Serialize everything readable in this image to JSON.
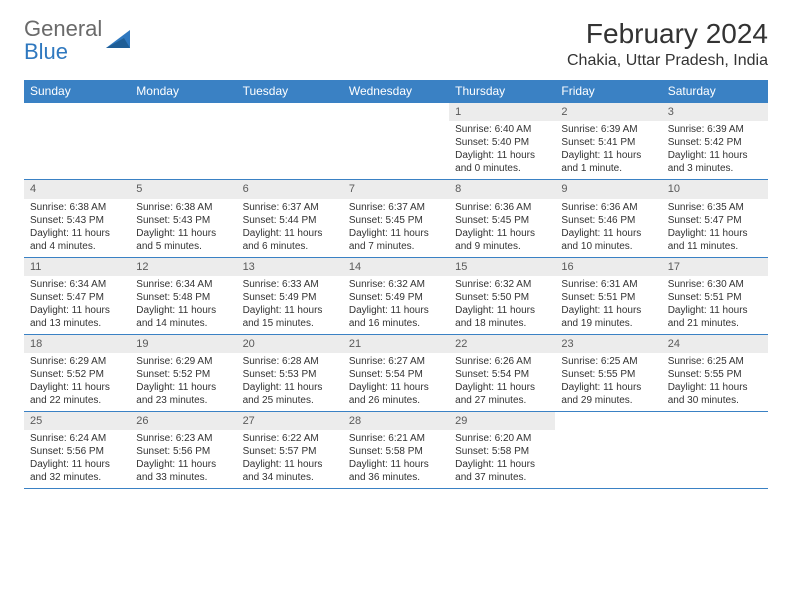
{
  "logo": {
    "general": "General",
    "blue": "Blue"
  },
  "title": "February 2024",
  "location": "Chakia, Uttar Pradesh, India",
  "colors": {
    "header_bg": "#3a81c4",
    "header_text": "#ffffff",
    "daynum_bg": "#ececec",
    "daynum_text": "#5a5a5a",
    "body_text": "#333333",
    "rule": "#3a81c4",
    "logo_gray": "#6a6a6a",
    "logo_blue": "#2f78bf"
  },
  "day_names": [
    "Sunday",
    "Monday",
    "Tuesday",
    "Wednesday",
    "Thursday",
    "Friday",
    "Saturday"
  ],
  "weeks": [
    [
      null,
      null,
      null,
      null,
      {
        "n": "1",
        "sr": "Sunrise: 6:40 AM",
        "ss": "Sunset: 5:40 PM",
        "d1": "Daylight: 11 hours",
        "d2": "and 0 minutes."
      },
      {
        "n": "2",
        "sr": "Sunrise: 6:39 AM",
        "ss": "Sunset: 5:41 PM",
        "d1": "Daylight: 11 hours",
        "d2": "and 1 minute."
      },
      {
        "n": "3",
        "sr": "Sunrise: 6:39 AM",
        "ss": "Sunset: 5:42 PM",
        "d1": "Daylight: 11 hours",
        "d2": "and 3 minutes."
      }
    ],
    [
      {
        "n": "4",
        "sr": "Sunrise: 6:38 AM",
        "ss": "Sunset: 5:43 PM",
        "d1": "Daylight: 11 hours",
        "d2": "and 4 minutes."
      },
      {
        "n": "5",
        "sr": "Sunrise: 6:38 AM",
        "ss": "Sunset: 5:43 PM",
        "d1": "Daylight: 11 hours",
        "d2": "and 5 minutes."
      },
      {
        "n": "6",
        "sr": "Sunrise: 6:37 AM",
        "ss": "Sunset: 5:44 PM",
        "d1": "Daylight: 11 hours",
        "d2": "and 6 minutes."
      },
      {
        "n": "7",
        "sr": "Sunrise: 6:37 AM",
        "ss": "Sunset: 5:45 PM",
        "d1": "Daylight: 11 hours",
        "d2": "and 7 minutes."
      },
      {
        "n": "8",
        "sr": "Sunrise: 6:36 AM",
        "ss": "Sunset: 5:45 PM",
        "d1": "Daylight: 11 hours",
        "d2": "and 9 minutes."
      },
      {
        "n": "9",
        "sr": "Sunrise: 6:36 AM",
        "ss": "Sunset: 5:46 PM",
        "d1": "Daylight: 11 hours",
        "d2": "and 10 minutes."
      },
      {
        "n": "10",
        "sr": "Sunrise: 6:35 AM",
        "ss": "Sunset: 5:47 PM",
        "d1": "Daylight: 11 hours",
        "d2": "and 11 minutes."
      }
    ],
    [
      {
        "n": "11",
        "sr": "Sunrise: 6:34 AM",
        "ss": "Sunset: 5:47 PM",
        "d1": "Daylight: 11 hours",
        "d2": "and 13 minutes."
      },
      {
        "n": "12",
        "sr": "Sunrise: 6:34 AM",
        "ss": "Sunset: 5:48 PM",
        "d1": "Daylight: 11 hours",
        "d2": "and 14 minutes."
      },
      {
        "n": "13",
        "sr": "Sunrise: 6:33 AM",
        "ss": "Sunset: 5:49 PM",
        "d1": "Daylight: 11 hours",
        "d2": "and 15 minutes."
      },
      {
        "n": "14",
        "sr": "Sunrise: 6:32 AM",
        "ss": "Sunset: 5:49 PM",
        "d1": "Daylight: 11 hours",
        "d2": "and 16 minutes."
      },
      {
        "n": "15",
        "sr": "Sunrise: 6:32 AM",
        "ss": "Sunset: 5:50 PM",
        "d1": "Daylight: 11 hours",
        "d2": "and 18 minutes."
      },
      {
        "n": "16",
        "sr": "Sunrise: 6:31 AM",
        "ss": "Sunset: 5:51 PM",
        "d1": "Daylight: 11 hours",
        "d2": "and 19 minutes."
      },
      {
        "n": "17",
        "sr": "Sunrise: 6:30 AM",
        "ss": "Sunset: 5:51 PM",
        "d1": "Daylight: 11 hours",
        "d2": "and 21 minutes."
      }
    ],
    [
      {
        "n": "18",
        "sr": "Sunrise: 6:29 AM",
        "ss": "Sunset: 5:52 PM",
        "d1": "Daylight: 11 hours",
        "d2": "and 22 minutes."
      },
      {
        "n": "19",
        "sr": "Sunrise: 6:29 AM",
        "ss": "Sunset: 5:52 PM",
        "d1": "Daylight: 11 hours",
        "d2": "and 23 minutes."
      },
      {
        "n": "20",
        "sr": "Sunrise: 6:28 AM",
        "ss": "Sunset: 5:53 PM",
        "d1": "Daylight: 11 hours",
        "d2": "and 25 minutes."
      },
      {
        "n": "21",
        "sr": "Sunrise: 6:27 AM",
        "ss": "Sunset: 5:54 PM",
        "d1": "Daylight: 11 hours",
        "d2": "and 26 minutes."
      },
      {
        "n": "22",
        "sr": "Sunrise: 6:26 AM",
        "ss": "Sunset: 5:54 PM",
        "d1": "Daylight: 11 hours",
        "d2": "and 27 minutes."
      },
      {
        "n": "23",
        "sr": "Sunrise: 6:25 AM",
        "ss": "Sunset: 5:55 PM",
        "d1": "Daylight: 11 hours",
        "d2": "and 29 minutes."
      },
      {
        "n": "24",
        "sr": "Sunrise: 6:25 AM",
        "ss": "Sunset: 5:55 PM",
        "d1": "Daylight: 11 hours",
        "d2": "and 30 minutes."
      }
    ],
    [
      {
        "n": "25",
        "sr": "Sunrise: 6:24 AM",
        "ss": "Sunset: 5:56 PM",
        "d1": "Daylight: 11 hours",
        "d2": "and 32 minutes."
      },
      {
        "n": "26",
        "sr": "Sunrise: 6:23 AM",
        "ss": "Sunset: 5:56 PM",
        "d1": "Daylight: 11 hours",
        "d2": "and 33 minutes."
      },
      {
        "n": "27",
        "sr": "Sunrise: 6:22 AM",
        "ss": "Sunset: 5:57 PM",
        "d1": "Daylight: 11 hours",
        "d2": "and 34 minutes."
      },
      {
        "n": "28",
        "sr": "Sunrise: 6:21 AM",
        "ss": "Sunset: 5:58 PM",
        "d1": "Daylight: 11 hours",
        "d2": "and 36 minutes."
      },
      {
        "n": "29",
        "sr": "Sunrise: 6:20 AM",
        "ss": "Sunset: 5:58 PM",
        "d1": "Daylight: 11 hours",
        "d2": "and 37 minutes."
      },
      null,
      null
    ]
  ]
}
